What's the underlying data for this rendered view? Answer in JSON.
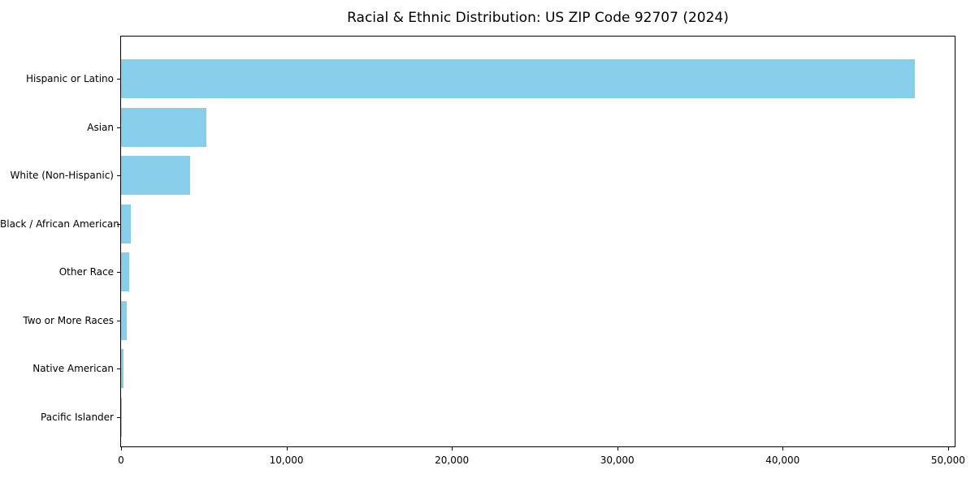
{
  "chart_data": {
    "type": "bar",
    "orientation": "horizontal",
    "title": "Racial & Ethnic Distribution: US ZIP Code 92707 (2024)",
    "categories": [
      "Hispanic or Latino",
      "Asian",
      "White (Non-Hispanic)",
      "Black / African American",
      "Other Race",
      "Two or More Races",
      "Native American",
      "Pacific Islander"
    ],
    "values": [
      48000,
      5150,
      4180,
      600,
      480,
      330,
      170,
      20
    ],
    "xlabel": "",
    "ylabel": "",
    "xlim": [
      0,
      50400
    ],
    "x_ticks": [
      0,
      10000,
      20000,
      30000,
      40000,
      50000
    ],
    "x_tick_labels": [
      "0",
      "10,000",
      "20,000",
      "30,000",
      "40,000",
      "50,000"
    ],
    "bar_color": "#87CEEB",
    "spine_color": "#000000",
    "text_color": "#000000",
    "background_color": "#ffffff",
    "grid": false,
    "legend": null
  }
}
